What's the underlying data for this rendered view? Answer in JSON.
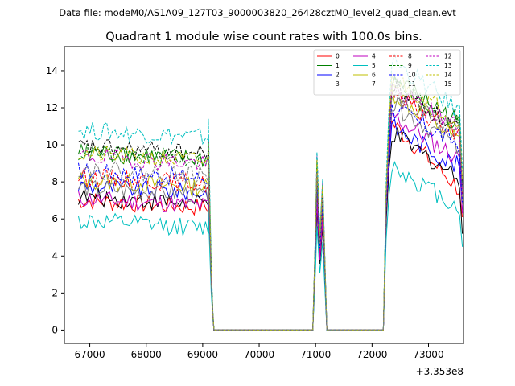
{
  "figure": {
    "suptitle": "Data file: modeM0/AS1A09_127T03_9000003820_26428cztM0_level2_quad_clean.evt"
  },
  "chart_data": {
    "type": "line",
    "title": "Quadrant 1 module wise count rates with 100.0s bins.",
    "xlabel": "",
    "ylabel": "",
    "offset_text": "+3.353e8",
    "xlim": [
      66550,
      73620
    ],
    "ylim": [
      -0.72,
      15.3
    ],
    "x_ticks": [
      67000,
      68000,
      69000,
      70000,
      71000,
      72000,
      73000
    ],
    "x_tick_labels": [
      "67000",
      "68000",
      "69000",
      "70000",
      "71000",
      "72000",
      "73000"
    ],
    "y_ticks": [
      0,
      2,
      4,
      6,
      8,
      10,
      12,
      14
    ],
    "y_tick_labels": [
      "0",
      "2",
      "4",
      "6",
      "8",
      "10",
      "12",
      "14"
    ],
    "grid": false,
    "legend_position": "upper right",
    "legend_columns": 4,
    "segments": [
      {
        "x_start": 66800,
        "x_end": 69100
      },
      {
        "x_start": 69150,
        "x_end": 69150,
        "value_ratio": 0.1
      },
      {
        "x_start": 69200,
        "x_end": 70900,
        "zero": true
      },
      {
        "x_start": 70950,
        "x_end": 71150,
        "spike": true
      },
      {
        "x_start": 71200,
        "x_end": 72200,
        "zero": true
      },
      {
        "x_start": 72250,
        "x_end": 73600
      }
    ],
    "series": [
      {
        "name": "0",
        "color": "#ff0000",
        "dash": "solid",
        "base1": 7.0,
        "spike": 7.5,
        "peak2": 11.2,
        "end2": 7.6,
        "final": 6.1
      },
      {
        "name": "1",
        "color": "#008000",
        "dash": "solid",
        "base1": 9.6,
        "spike": 9.1,
        "peak2": 13.6,
        "end2": 11.2,
        "final": 7.9
      },
      {
        "name": "2",
        "color": "#0000ff",
        "dash": "solid",
        "base1": 7.8,
        "spike": 6.7,
        "peak2": 11.0,
        "end2": 8.8,
        "final": 6.5
      },
      {
        "name": "3",
        "color": "#000000",
        "dash": "solid",
        "base1": 7.2,
        "spike": 6.5,
        "peak2": 10.6,
        "end2": 8.2,
        "final": 5.2
      },
      {
        "name": "4",
        "color": "#bf00bf",
        "dash": "solid",
        "base1": 7.1,
        "spike": 6.9,
        "peak2": 11.6,
        "end2": 9.2,
        "final": 6.3
      },
      {
        "name": "5",
        "color": "#00bfbf",
        "dash": "solid",
        "base1": 5.9,
        "spike": 5.6,
        "peak2": 8.9,
        "end2": 6.6,
        "final": 4.5
      },
      {
        "name": "6",
        "color": "#bfbf00",
        "dash": "solid",
        "base1": 8.1,
        "spike": 8.3,
        "peak2": 12.9,
        "end2": 10.2,
        "final": 7.1
      },
      {
        "name": "7",
        "color": "#808080",
        "dash": "solid",
        "base1": 7.7,
        "spike": 8.0,
        "peak2": 12.2,
        "end2": 9.9,
        "final": 6.8
      },
      {
        "name": "8",
        "color": "#ff0000",
        "dash": "dashed",
        "base1": 8.3,
        "spike": 8.4,
        "peak2": 12.6,
        "end2": 10.5,
        "final": 7.3
      },
      {
        "name": "9",
        "color": "#008000",
        "dash": "dashed",
        "base1": 9.6,
        "spike": 9.2,
        "peak2": 13.4,
        "end2": 11.0,
        "final": 8.0
      },
      {
        "name": "10",
        "color": "#0000ff",
        "dash": "dashed",
        "base1": 8.6,
        "spike": 8.0,
        "peak2": 12.0,
        "end2": 10.0,
        "final": 6.9
      },
      {
        "name": "11",
        "color": "#000000",
        "dash": "dashed",
        "base1": 9.9,
        "spike": 8.6,
        "peak2": 13.2,
        "end2": 10.8,
        "final": 7.7
      },
      {
        "name": "12",
        "color": "#bf00bf",
        "dash": "dashed",
        "base1": 9.4,
        "spike": 9.5,
        "peak2": 13.0,
        "end2": 10.9,
        "final": 7.5
      },
      {
        "name": "13",
        "color": "#00bfbf",
        "dash": "dashed",
        "base1": 10.8,
        "spike": 9.6,
        "peak2": 14.6,
        "end2": 11.8,
        "final": 8.7
      },
      {
        "name": "14",
        "color": "#bfbf00",
        "dash": "dashed",
        "base1": 9.5,
        "spike": 9.2,
        "peak2": 13.6,
        "end2": 11.3,
        "final": 8.1
      },
      {
        "name": "15",
        "color": "#808080",
        "dash": "dashed",
        "base1": 8.7,
        "spike": 8.5,
        "peak2": 12.8,
        "end2": 10.7,
        "final": 7.4
      }
    ]
  }
}
